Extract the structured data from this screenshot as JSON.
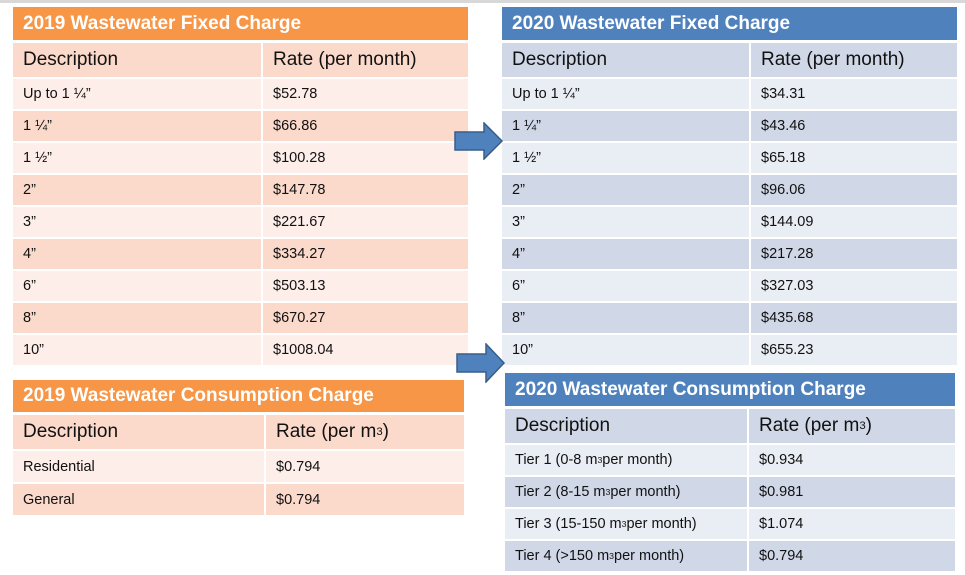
{
  "colors": {
    "orange": "#F79646",
    "blue": "#4F81BD"
  },
  "tables": [
    {
      "id": "fixed-2019",
      "title": "2019 Wastewater Fixed Charge",
      "headers": [
        "Description",
        "Rate (per month)"
      ],
      "rows": [
        [
          "Up to 1 ¼”",
          "$52.78"
        ],
        [
          "1 ¼”",
          "$66.86"
        ],
        [
          "1 ½”",
          "$100.28"
        ],
        [
          "2”",
          "$147.78"
        ],
        [
          "3”",
          "$221.67"
        ],
        [
          "4”",
          "$334.27"
        ],
        [
          "6”",
          "$503.13"
        ],
        [
          "8”",
          "$670.27"
        ],
        [
          "10”",
          "$1008.04"
        ]
      ]
    },
    {
      "id": "fixed-2020",
      "title": "2020 Wastewater Fixed Charge",
      "headers": [
        "Description",
        "Rate (per month)"
      ],
      "rows": [
        [
          "Up to 1 ¼”",
          "$34.31"
        ],
        [
          "1 ¼”",
          "$43.46"
        ],
        [
          "1 ½”",
          "$65.18"
        ],
        [
          "2”",
          "$96.06"
        ],
        [
          "3”",
          "$144.09"
        ],
        [
          "4”",
          "$217.28"
        ],
        [
          "6”",
          "$327.03"
        ],
        [
          "8”",
          "$435.68"
        ],
        [
          "10”",
          "$655.23"
        ]
      ]
    },
    {
      "id": "consumption-2019",
      "title": "2019 Wastewater Consumption Charge",
      "headers": [
        "Description",
        "Rate (per m³)"
      ],
      "rows": [
        [
          "Residential",
          "$0.794"
        ],
        [
          "General",
          "$0.794"
        ]
      ]
    },
    {
      "id": "consumption-2020",
      "title": "2020 Wastewater Consumption Charge",
      "headers": [
        "Description",
        "Rate (per m³)"
      ],
      "rows": [
        [
          "Tier 1 (0-8 m³ per month)",
          "$0.934"
        ],
        [
          "Tier 2 (8-15 m³ per month)",
          "$0.981"
        ],
        [
          "Tier 3 (15-150 m³ per month)",
          "$1.074"
        ],
        [
          "Tier 4 (>150 m³ per month)",
          "$0.794"
        ]
      ]
    }
  ],
  "icons": [
    "right-arrow-icon",
    "right-arrow-icon"
  ]
}
